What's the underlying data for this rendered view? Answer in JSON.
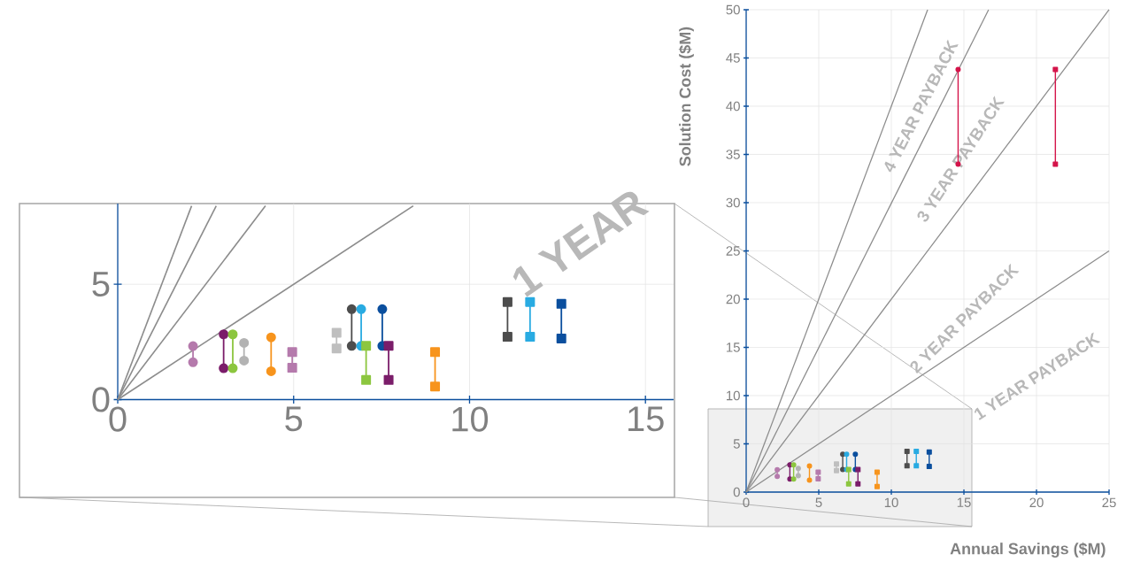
{
  "chart_data": [
    {
      "type": "line",
      "xlabel": "Annual Savings ($M)",
      "ylabel": "Solution Cost ($M)",
      "xlim": [
        0,
        25
      ],
      "ylim": [
        0,
        50
      ],
      "xticks": [
        0,
        5,
        10,
        15,
        20,
        25
      ],
      "yticks": [
        0,
        5,
        10,
        15,
        20,
        25,
        30,
        35,
        40,
        45,
        50
      ],
      "grid": true,
      "annotations": [
        "4 YEAR PAYBACK",
        "3 YEAR PAYBACK",
        "2 YEAR PAYBACK",
        "1 YEAR PAYBACK"
      ],
      "series": [
        {
          "color": "#8c8c8c",
          "x": [
            0,
            12.5
          ],
          "values": [
            0,
            50
          ]
        },
        {
          "color": "#8c8c8c",
          "x": [
            0,
            16.7
          ],
          "values": [
            0,
            50
          ]
        },
        {
          "color": "#8c8c8c",
          "x": [
            0,
            25
          ],
          "values": [
            0,
            50
          ]
        },
        {
          "color": "#8c8c8c",
          "x": [
            0,
            25
          ],
          "values": [
            0,
            25
          ]
        },
        {
          "color": "#b57aac",
          "marker": "circle",
          "x": [
            2.14,
            2.14
          ],
          "values": [
            2.32,
            1.62
          ]
        },
        {
          "color": "#7b1d6a",
          "marker": "circle",
          "x": [
            3.01,
            3.01
          ],
          "values": [
            2.83,
            1.36
          ]
        },
        {
          "color": "#8cc63f",
          "marker": "circle",
          "x": [
            3.27,
            3.27
          ],
          "values": [
            2.83,
            1.36
          ]
        },
        {
          "color": "#b3b3b3",
          "marker": "circle",
          "x": [
            3.59,
            3.59
          ],
          "values": [
            2.46,
            1.69
          ]
        },
        {
          "color": "#f7941d",
          "marker": "circle",
          "x": [
            4.36,
            4.36
          ],
          "values": [
            2.7,
            1.23
          ]
        },
        {
          "color": "#b57aac",
          "marker": "square",
          "x": [
            4.96,
            4.96
          ],
          "values": [
            2.06,
            1.38
          ]
        },
        {
          "color": "#bfbfbf",
          "marker": "square",
          "x": [
            6.22,
            6.22
          ],
          "values": [
            2.9,
            2.22
          ]
        },
        {
          "color": "#4d4d4d",
          "marker": "circle",
          "x": [
            6.65,
            6.65
          ],
          "values": [
            3.92,
            2.33
          ]
        },
        {
          "color": "#29abe2",
          "marker": "circle",
          "x": [
            6.92,
            6.92
          ],
          "values": [
            3.92,
            2.33
          ]
        },
        {
          "color": "#8cc63f",
          "marker": "square",
          "x": [
            7.06,
            7.06
          ],
          "values": [
            2.33,
            0.85
          ]
        },
        {
          "color": "#0b4f9e",
          "marker": "circle",
          "x": [
            7.52,
            7.52
          ],
          "values": [
            3.92,
            2.33
          ]
        },
        {
          "color": "#7b1d6a",
          "marker": "square",
          "x": [
            7.7,
            7.7
          ],
          "values": [
            2.33,
            0.85
          ]
        },
        {
          "color": "#f7941d",
          "marker": "square",
          "x": [
            9.02,
            9.02
          ],
          "values": [
            2.06,
            0.57
          ]
        },
        {
          "color": "#4d4d4d",
          "marker": "square",
          "x": [
            11.08,
            11.08
          ],
          "values": [
            4.23,
            2.72
          ]
        },
        {
          "color": "#29abe2",
          "marker": "square",
          "x": [
            11.72,
            11.72
          ],
          "values": [
            4.23,
            2.72
          ]
        },
        {
          "color": "#0b4f9e",
          "marker": "square",
          "x": [
            12.61,
            12.61
          ],
          "values": [
            4.15,
            2.65
          ]
        },
        {
          "color": "#d4144a",
          "marker": "circle",
          "x": [
            14.6,
            14.6
          ],
          "values": [
            43.8,
            34.0
          ]
        },
        {
          "color": "#d4144a",
          "marker": "square",
          "x": [
            21.3,
            21.3
          ],
          "values": [
            43.8,
            34.0
          ]
        }
      ]
    },
    {
      "type": "line",
      "xlim": [
        0,
        15.8
      ],
      "ylim": [
        0,
        8.5
      ],
      "xticks": [
        0,
        5,
        10,
        15
      ],
      "yticks": [
        0,
        5
      ],
      "grid": true,
      "annotations": [
        "1 YEAR"
      ],
      "series": [
        {
          "color": "#8c8c8c",
          "x": [
            0,
            2.1
          ],
          "values": [
            0,
            8.4
          ]
        },
        {
          "color": "#8c8c8c",
          "x": [
            0,
            2.8
          ],
          "values": [
            0,
            8.4
          ]
        },
        {
          "color": "#8c8c8c",
          "x": [
            0,
            4.2
          ],
          "values": [
            0,
            8.4
          ]
        },
        {
          "color": "#8c8c8c",
          "x": [
            0,
            8.4
          ],
          "values": [
            0,
            8.4
          ]
        },
        {
          "color": "#b57aac",
          "marker": "circle",
          "x": [
            2.14,
            2.14
          ],
          "values": [
            2.32,
            1.62
          ]
        },
        {
          "color": "#7b1d6a",
          "marker": "circle",
          "x": [
            3.01,
            3.01
          ],
          "values": [
            2.83,
            1.36
          ]
        },
        {
          "color": "#8cc63f",
          "marker": "circle",
          "x": [
            3.27,
            3.27
          ],
          "values": [
            2.83,
            1.36
          ]
        },
        {
          "color": "#b3b3b3",
          "marker": "circle",
          "x": [
            3.59,
            3.59
          ],
          "values": [
            2.46,
            1.69
          ]
        },
        {
          "color": "#f7941d",
          "marker": "circle",
          "x": [
            4.36,
            4.36
          ],
          "values": [
            2.7,
            1.23
          ]
        },
        {
          "color": "#b57aac",
          "marker": "square",
          "x": [
            4.96,
            4.96
          ],
          "values": [
            2.06,
            1.38
          ]
        },
        {
          "color": "#bfbfbf",
          "marker": "square",
          "x": [
            6.22,
            6.22
          ],
          "values": [
            2.9,
            2.22
          ]
        },
        {
          "color": "#4d4d4d",
          "marker": "circle",
          "x": [
            6.65,
            6.65
          ],
          "values": [
            3.92,
            2.33
          ]
        },
        {
          "color": "#29abe2",
          "marker": "circle",
          "x": [
            6.92,
            6.92
          ],
          "values": [
            3.92,
            2.33
          ]
        },
        {
          "color": "#8cc63f",
          "marker": "square",
          "x": [
            7.06,
            7.06
          ],
          "values": [
            2.33,
            0.85
          ]
        },
        {
          "color": "#0b4f9e",
          "marker": "circle",
          "x": [
            7.52,
            7.52
          ],
          "values": [
            3.92,
            2.33
          ]
        },
        {
          "color": "#7b1d6a",
          "marker": "square",
          "x": [
            7.7,
            7.7
          ],
          "values": [
            2.33,
            0.85
          ]
        },
        {
          "color": "#f7941d",
          "marker": "square",
          "x": [
            9.02,
            9.02
          ],
          "values": [
            2.06,
            0.57
          ]
        },
        {
          "color": "#4d4d4d",
          "marker": "square",
          "x": [
            11.08,
            11.08
          ],
          "values": [
            4.23,
            2.72
          ]
        },
        {
          "color": "#29abe2",
          "marker": "square",
          "x": [
            11.72,
            11.72
          ],
          "values": [
            4.23,
            2.72
          ]
        },
        {
          "color": "#0b4f9e",
          "marker": "square",
          "x": [
            12.61,
            12.61
          ],
          "values": [
            4.15,
            2.65
          ]
        }
      ]
    }
  ]
}
